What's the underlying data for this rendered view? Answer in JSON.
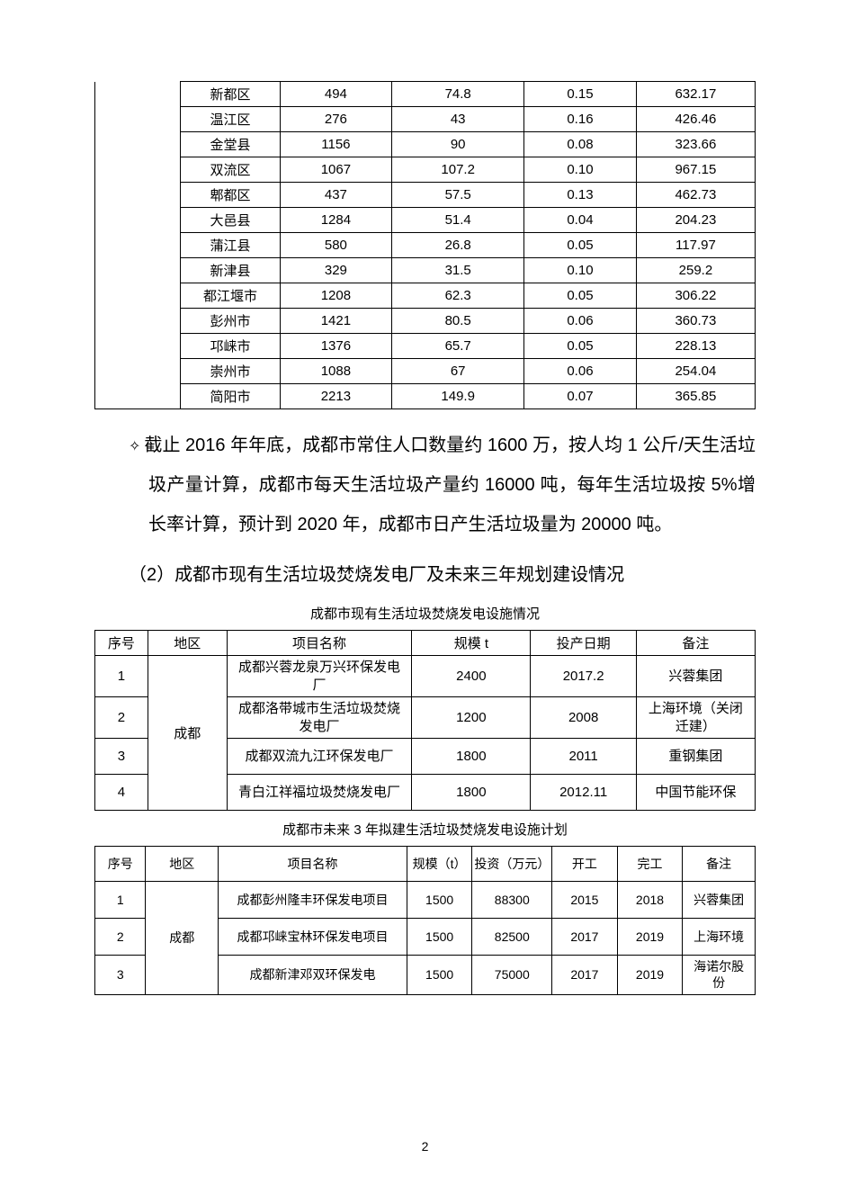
{
  "table1": {
    "rows": [
      {
        "district": "新都区",
        "c2": "494",
        "c3": "74.8",
        "c4": "0.15",
        "c5": "632.17"
      },
      {
        "district": "温江区",
        "c2": "276",
        "c3": "43",
        "c4": "0.16",
        "c5": "426.46"
      },
      {
        "district": "金堂县",
        "c2": "1156",
        "c3": "90",
        "c4": "0.08",
        "c5": "323.66"
      },
      {
        "district": "双流区",
        "c2": "1067",
        "c3": "107.2",
        "c4": "0.10",
        "c5": "967.15"
      },
      {
        "district": "郫都区",
        "c2": "437",
        "c3": "57.5",
        "c4": "0.13",
        "c5": "462.73"
      },
      {
        "district": "大邑县",
        "c2": "1284",
        "c3": "51.4",
        "c4": "0.04",
        "c5": "204.23"
      },
      {
        "district": "蒲江县",
        "c2": "580",
        "c3": "26.8",
        "c4": "0.05",
        "c5": "117.97"
      },
      {
        "district": "新津县",
        "c2": "329",
        "c3": "31.5",
        "c4": "0.10",
        "c5": "259.2"
      },
      {
        "district": "都江堰市",
        "c2": "1208",
        "c3": "62.3",
        "c4": "0.05",
        "c5": "306.22"
      },
      {
        "district": "彭州市",
        "c2": "1421",
        "c3": "80.5",
        "c4": "0.06",
        "c5": "360.73"
      },
      {
        "district": "邛崃市",
        "c2": "1376",
        "c3": "65.7",
        "c4": "0.05",
        "c5": "228.13"
      },
      {
        "district": "崇州市",
        "c2": "1088",
        "c3": "67",
        "c4": "0.06",
        "c5": "254.04"
      },
      {
        "district": "简阳市",
        "c2": "2213",
        "c3": "149.9",
        "c4": "0.07",
        "c5": "365.85"
      }
    ]
  },
  "paragraph1": "截止 2016 年年底，成都市常住人口数量约 1600 万，按人均 1 公斤/天生活垃圾产量计算，成都市每天生活垃圾产量约 16000 吨，每年生活垃圾按 5%增长率计算，预计到 2020 年，成都市日产生活垃圾量为 20000 吨。",
  "subtitle2": "（2）成都市现有生活垃圾焚烧发电厂及未来三年规划建设情况",
  "caption2": "成都市现有生活垃圾焚烧发电设施情况",
  "table2": {
    "headers": {
      "no": "序号",
      "region": "地区",
      "project": "项目名称",
      "scale": "规模 t",
      "date": "投产日期",
      "note": "备注"
    },
    "region": "成都",
    "rows": [
      {
        "no": "1",
        "project": "成都兴蓉龙泉万兴环保发电厂",
        "scale": "2400",
        "date": "2017.2",
        "note": "兴蓉集团"
      },
      {
        "no": "2",
        "project": "成都洛带城市生活垃圾焚烧发电厂",
        "scale": "1200",
        "date": "2008",
        "note": "上海环境（关闭迁建）"
      },
      {
        "no": "3",
        "project": "成都双流九江环保发电厂",
        "scale": "1800",
        "date": "2011",
        "note": "重钢集团"
      },
      {
        "no": "4",
        "project": "青白江祥福垃圾焚烧发电厂",
        "scale": "1800",
        "date": "2012.11",
        "note": "中国节能环保"
      }
    ]
  },
  "caption3": "成都市未来 3 年拟建生活垃圾焚烧发电设施计划",
  "table3": {
    "headers": {
      "no": "序号",
      "region": "地区",
      "project": "项目名称",
      "scale": "规模（t）",
      "invest": "投资（万元）",
      "start": "开工",
      "end": "完工",
      "note": "备注"
    },
    "region": "成都",
    "rows": [
      {
        "no": "1",
        "project": "成都彭州隆丰环保发电项目",
        "scale": "1500",
        "invest": "88300",
        "start": "2015",
        "end": "2018",
        "note": "兴蓉集团"
      },
      {
        "no": "2",
        "project": "成都邛崃宝林环保发电项目",
        "scale": "1500",
        "invest": "82500",
        "start": "2017",
        "end": "2019",
        "note": "上海环境"
      },
      {
        "no": "3",
        "project": "成都新津邓双环保发电",
        "scale": "1500",
        "invest": "75000",
        "start": "2017",
        "end": "2019",
        "note": "海诺尔股份"
      }
    ]
  },
  "pageNumber": "2"
}
